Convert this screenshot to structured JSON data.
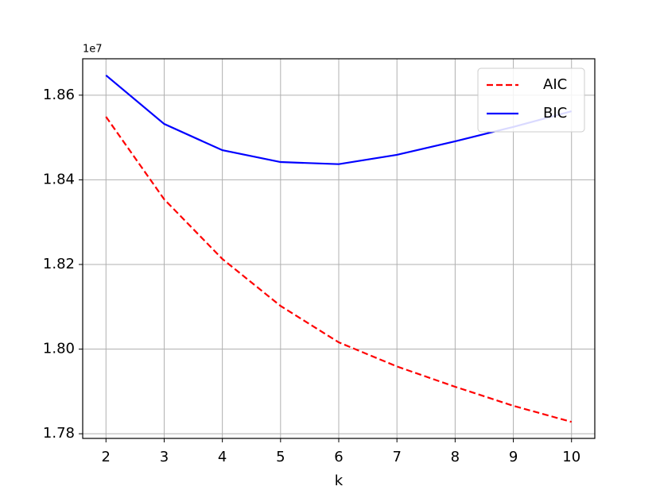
{
  "chart_data": {
    "type": "line",
    "x_label": "k",
    "offset_label": "1e7",
    "x": [
      2,
      3,
      4,
      5,
      6,
      7,
      8,
      9,
      10
    ],
    "series": [
      {
        "name": "AIC",
        "color": "#ff0000",
        "linestyle": "dashed",
        "values": [
          1.8549,
          1.8354,
          1.8213,
          1.8102,
          1.8016,
          1.7959,
          1.7911,
          1.7866,
          1.7828
        ]
      },
      {
        "name": "BIC",
        "color": "#0000ff",
        "linestyle": "solid",
        "values": [
          1.8647,
          1.8532,
          1.847,
          1.8442,
          1.8437,
          1.8459,
          1.8491,
          1.8525,
          1.8562
        ]
      }
    ],
    "xlim": [
      1.6,
      10.4
    ],
    "xticks": [
      2,
      3,
      4,
      5,
      6,
      7,
      8,
      9,
      10
    ],
    "ylim": [
      1.7789,
      1.8686
    ],
    "yticks": [
      1.78,
      {
        "value": 1.8,
        "label": "1.80"
      },
      1.82,
      1.84,
      1.86
    ],
    "grid": true,
    "legend": "upper right"
  }
}
